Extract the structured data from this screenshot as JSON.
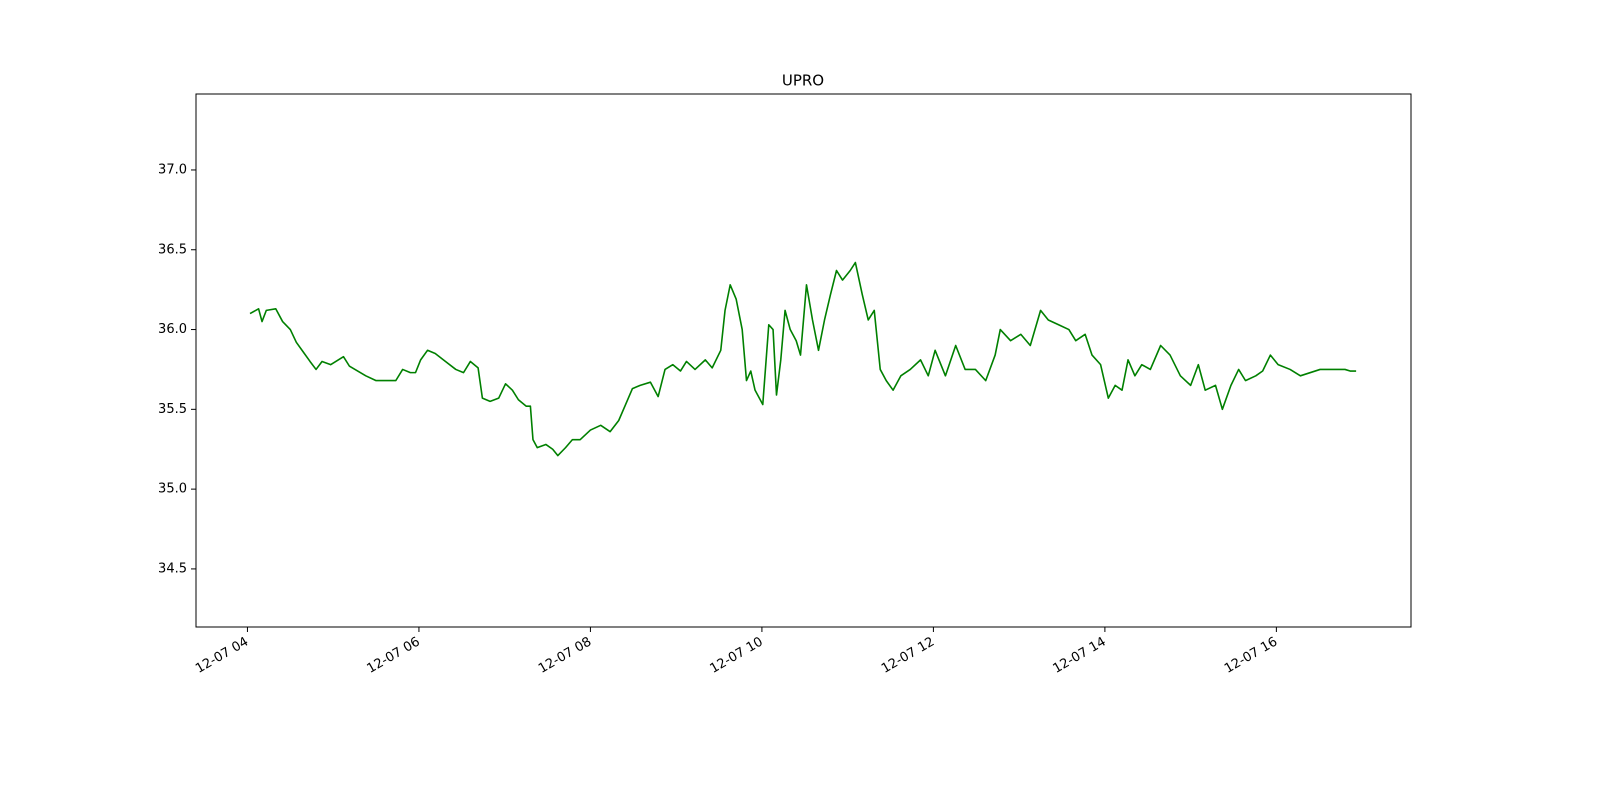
{
  "chart_data": {
    "type": "line",
    "title": "UPRO",
    "color": "#008000",
    "x": [
      4.03,
      4.13,
      4.17,
      4.22,
      4.33,
      4.41,
      4.5,
      4.57,
      4.65,
      4.73,
      4.8,
      4.87,
      4.97,
      5.12,
      5.19,
      5.38,
      5.5,
      5.73,
      5.81,
      5.9,
      5.96,
      6.02,
      6.1,
      6.19,
      6.31,
      6.43,
      6.52,
      6.6,
      6.69,
      6.74,
      6.83,
      6.93,
      7.01,
      7.09,
      7.16,
      7.25,
      7.3,
      7.33,
      7.38,
      7.48,
      7.56,
      7.62,
      7.71,
      7.79,
      7.88,
      8.0,
      8.12,
      8.23,
      8.33,
      8.41,
      8.49,
      8.58,
      8.7,
      8.79,
      8.87,
      8.96,
      9.05,
      9.12,
      9.22,
      9.34,
      9.42,
      9.52,
      9.57,
      9.63,
      9.7,
      9.77,
      9.82,
      9.87,
      9.92,
      10.01,
      10.08,
      10.13,
      10.17,
      10.22,
      10.27,
      10.33,
      10.4,
      10.45,
      10.52,
      10.59,
      10.66,
      10.73,
      10.8,
      10.87,
      10.94,
      11.03,
      11.09,
      11.17,
      11.24,
      11.31,
      11.38,
      11.45,
      11.53,
      11.62,
      11.73,
      11.85,
      11.94,
      12.02,
      12.14,
      12.26,
      12.37,
      12.49,
      12.61,
      12.72,
      12.78,
      12.9,
      13.02,
      13.13,
      13.25,
      13.34,
      13.46,
      13.58,
      13.66,
      13.77,
      13.85,
      13.95,
      14.04,
      14.12,
      14.2,
      14.27,
      14.35,
      14.43,
      14.53,
      14.65,
      14.76,
      14.88,
      15.0,
      15.09,
      15.17,
      15.29,
      15.37,
      15.47,
      15.56,
      15.64,
      15.76,
      15.84,
      15.93,
      16.02,
      16.16,
      16.28,
      16.51,
      16.8,
      16.86,
      16.93
    ],
    "values": [
      36.1,
      36.13,
      36.05,
      36.12,
      36.13,
      36.05,
      36.0,
      35.92,
      35.86,
      35.8,
      35.75,
      35.8,
      35.78,
      35.83,
      35.77,
      35.71,
      35.68,
      35.68,
      35.75,
      35.73,
      35.73,
      35.81,
      35.87,
      35.85,
      35.8,
      35.75,
      35.73,
      35.8,
      35.76,
      35.57,
      35.55,
      35.57,
      35.66,
      35.62,
      35.56,
      35.52,
      35.52,
      35.31,
      35.26,
      35.28,
      35.25,
      35.21,
      35.26,
      35.31,
      35.31,
      35.37,
      35.4,
      35.36,
      35.43,
      35.53,
      35.63,
      35.65,
      35.67,
      35.58,
      35.75,
      35.78,
      35.74,
      35.8,
      35.75,
      35.81,
      35.76,
      35.87,
      36.12,
      36.28,
      36.19,
      36.0,
      35.68,
      35.74,
      35.62,
      35.53,
      36.03,
      36.0,
      35.59,
      35.81,
      36.12,
      36.0,
      35.93,
      35.84,
      36.28,
      36.06,
      35.87,
      36.06,
      36.22,
      36.37,
      36.31,
      36.37,
      36.42,
      36.22,
      36.06,
      36.12,
      35.75,
      35.68,
      35.62,
      35.71,
      35.75,
      35.81,
      35.71,
      35.87,
      35.71,
      35.9,
      35.75,
      35.75,
      35.68,
      35.84,
      36.0,
      35.93,
      35.97,
      35.9,
      36.12,
      36.06,
      36.03,
      36.0,
      35.93,
      35.97,
      35.84,
      35.78,
      35.57,
      35.65,
      35.62,
      35.81,
      35.71,
      35.78,
      35.75,
      35.9,
      35.84,
      35.71,
      35.65,
      35.78,
      35.62,
      35.65,
      35.5,
      35.65,
      35.75,
      35.68,
      35.71,
      35.74,
      35.84,
      35.78,
      35.75,
      35.71,
      35.75,
      35.75,
      35.74,
      35.74
    ],
    "xlim": [
      3.4,
      17.57
    ],
    "xticks": [
      {
        "value": 4,
        "label": "12-07 04"
      },
      {
        "value": 6,
        "label": "12-07 06"
      },
      {
        "value": 8,
        "label": "12-07 08"
      },
      {
        "value": 10,
        "label": "12-07 10"
      },
      {
        "value": 12,
        "label": "12-07 12"
      },
      {
        "value": 14,
        "label": "12-07 14"
      },
      {
        "value": 16,
        "label": "12-07 16"
      }
    ],
    "ylim": [
      34.136,
      37.476
    ],
    "yticks": [
      34.5,
      {
        "value": 35,
        "label": "35.0"
      },
      35.5,
      {
        "value": 36,
        "label": "36.0"
      },
      36.5,
      {
        "value": 37,
        "label": "37.0"
      }
    ]
  }
}
